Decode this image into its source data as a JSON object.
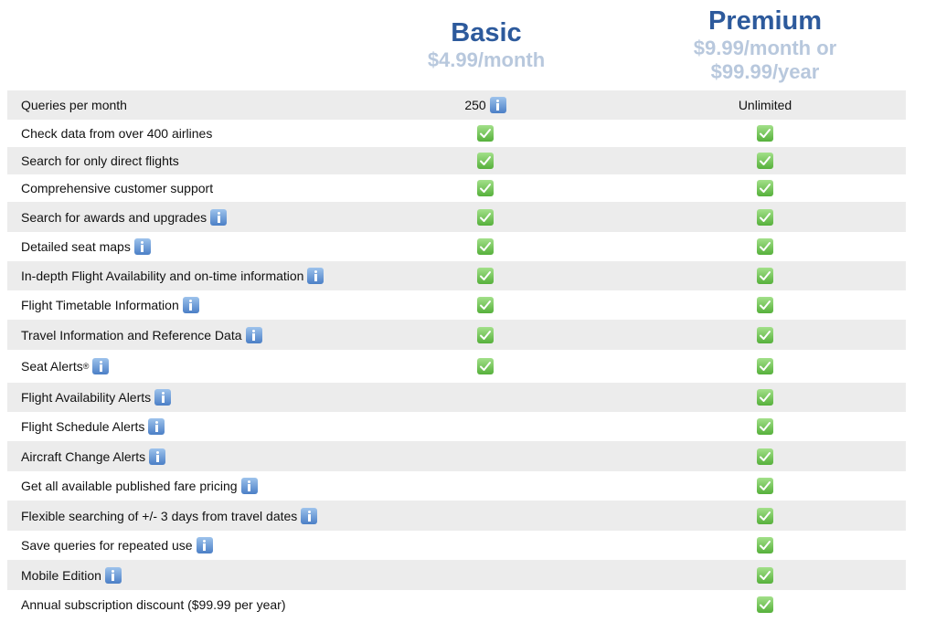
{
  "plans": {
    "basic": {
      "name": "Basic",
      "price": "$4.99/month"
    },
    "premium": {
      "name": "Premium",
      "price_line1": "$9.99/month or",
      "price_line2": "$99.99/year"
    }
  },
  "rows": [
    {
      "label": "Queries per month",
      "info": false,
      "basic": "250",
      "basic_info": true,
      "premium": "Unlimited"
    },
    {
      "label": "Check data from over 400 airlines",
      "info": false,
      "basic": "check",
      "premium": "check"
    },
    {
      "label": "Search for only direct flights",
      "info": false,
      "basic": "check",
      "premium": "check"
    },
    {
      "label": "Comprehensive customer support",
      "info": false,
      "basic": "check",
      "premium": "check"
    },
    {
      "label": "Search for awards and upgrades",
      "info": true,
      "basic": "check",
      "premium": "check"
    },
    {
      "label": "Detailed seat maps",
      "info": true,
      "basic": "check",
      "premium": "check"
    },
    {
      "label": "In-depth Flight Availability and on-time information",
      "info": true,
      "basic": "check",
      "premium": "check"
    },
    {
      "label": "Flight Timetable Information",
      "info": true,
      "basic": "check",
      "premium": "check"
    },
    {
      "label": "Travel Information and Reference Data",
      "info": true,
      "basic": "check",
      "premium": "check"
    },
    {
      "label": "Seat Alerts",
      "sup": "®",
      "info": true,
      "basic": "check",
      "premium": "check"
    },
    {
      "label": "Flight Availability Alerts",
      "info": true,
      "basic": "",
      "premium": "check"
    },
    {
      "label": "Flight Schedule Alerts",
      "info": true,
      "basic": "",
      "premium": "check"
    },
    {
      "label": "Aircraft Change Alerts",
      "info": true,
      "basic": "",
      "premium": "check"
    },
    {
      "label": "Get all available published fare pricing",
      "info": true,
      "basic": "",
      "premium": "check"
    },
    {
      "label": "Flexible searching of +/- 3 days from travel dates",
      "info": true,
      "basic": "",
      "premium": "check"
    },
    {
      "label": "Save queries for repeated use",
      "info": true,
      "basic": "",
      "premium": "check"
    },
    {
      "label": "Mobile Edition",
      "info": true,
      "basic": "",
      "premium": "check"
    },
    {
      "label": "Annual subscription discount ($99.99 per year)",
      "info": false,
      "basic": "",
      "premium": "check"
    }
  ],
  "icons": {
    "info": "info-icon",
    "check": "check-icon"
  },
  "colors": {
    "plan_name": "#2d5a9c",
    "plan_price": "#b8c8dd",
    "row_shade": "#ececec",
    "check": "#56b03b",
    "info": "#4b7fc6"
  }
}
